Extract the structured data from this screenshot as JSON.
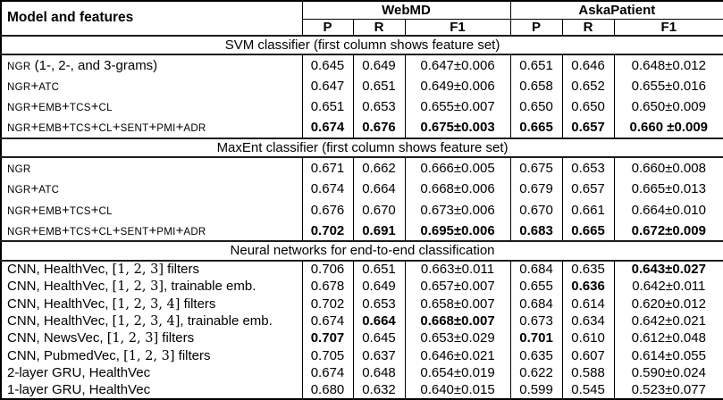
{
  "table": {
    "model_header": "Model and features",
    "col_groups": [
      "WebMD",
      "AskaPatient"
    ],
    "sub_headers": [
      "P",
      "R",
      "F1"
    ],
    "sections": [
      {
        "title": "SVM classifier (first column shows feature set)",
        "small_caps_features": true,
        "rows": [
          {
            "model": "NGR (1-, 2-, and 3-grams)",
            "values": [
              "0.645",
              "0.649",
              "0.647±0.006",
              "0.651",
              "0.646",
              "0.648±0.012"
            ],
            "bold": []
          },
          {
            "model": "NGR+ATC",
            "values": [
              "0.647",
              "0.651",
              "0.649±0.006",
              "0.658",
              "0.652",
              "0.655±0.016"
            ],
            "bold": []
          },
          {
            "model": "NGR+EMB+TCS+CL",
            "values": [
              "0.651",
              "0.653",
              "0.655±0.007",
              "0.650",
              "0.650",
              "0.650±0.009"
            ],
            "bold": []
          },
          {
            "model": "NGR+EMB+TCS+CL+SENT+PMI+ADR",
            "values": [
              "0.674",
              "0.676",
              "0.675±0.003",
              "0.665",
              "0.657",
              "0.660 ±0.009"
            ],
            "bold": [
              0,
              1,
              2,
              3,
              4,
              5
            ]
          }
        ]
      },
      {
        "title": "MaxEnt classifier (first column shows feature set)",
        "small_caps_features": true,
        "rows": [
          {
            "model": "NGR",
            "values": [
              "0.671",
              "0.662",
              "0.666±0.005",
              "0.675",
              "0.653",
              "0.660±0.008"
            ],
            "bold": []
          },
          {
            "model": "NGR+ATC",
            "values": [
              "0.674",
              "0.664",
              "0.668±0.006",
              "0.679",
              "0.657",
              "0.665±0.013"
            ],
            "bold": []
          },
          {
            "model": "NGR+EMB+TCS+CL",
            "values": [
              "0.676",
              "0.670",
              "0.673±0.006",
              "0.670",
              "0.661",
              "0.664±0.010"
            ],
            "bold": []
          },
          {
            "model": "NGR+EMB+TCS+CL+SENT+PMI+ADR",
            "values": [
              "0.702",
              "0.691",
              "0.695±0.006",
              "0.683",
              "0.665",
              "0.672±0.009"
            ],
            "bold": [
              0,
              1,
              2,
              3,
              4,
              5
            ]
          }
        ]
      },
      {
        "title": "Neural networks for end-to-end classification",
        "small_caps_features": false,
        "rows": [
          {
            "model": "CNN, HealthVec, [1, 2, 3] filters",
            "values": [
              "0.706",
              "0.651",
              "0.663±0.011",
              "0.684",
              "0.635",
              "0.643±0.027"
            ],
            "bold": [
              5
            ]
          },
          {
            "model": "CNN, HealthVec, [1, 2, 3], trainable emb.",
            "values": [
              "0.678",
              "0.649",
              "0.657±0.007",
              "0.655",
              "0.636",
              "0.642±0.011"
            ],
            "bold": [
              4
            ]
          },
          {
            "model": "CNN, HealthVec, [1, 2, 3, 4] filters",
            "values": [
              "0.702",
              "0.653",
              "0.658±0.007",
              "0.684",
              "0.614",
              "0.620±0.012"
            ],
            "bold": []
          },
          {
            "model": "CNN, HealthVec, [1, 2, 3, 4], trainable emb.",
            "values": [
              "0.674",
              "0.664",
              "0.668±0.007",
              "0.673",
              "0.634",
              "0.642±0.021"
            ],
            "bold": [
              1,
              2
            ]
          },
          {
            "model": "CNN, NewsVec, [1, 2, 3] filters",
            "values": [
              "0.707",
              "0.645",
              "0.653±0.029",
              "0.701",
              "0.610",
              "0.612±0.048"
            ],
            "bold": [
              0,
              3
            ]
          },
          {
            "model": "CNN, PubmedVec, [1, 2, 3] filters",
            "values": [
              "0.705",
              "0.637",
              "0.646±0.021",
              "0.635",
              "0.607",
              "0.614±0.055"
            ],
            "bold": []
          },
          {
            "model": "2-layer GRU, HealthVec",
            "values": [
              "0.674",
              "0.648",
              "0.654±0.019",
              "0.622",
              "0.588",
              "0.590±0.024"
            ],
            "bold": []
          },
          {
            "model": "1-layer GRU, HealthVec",
            "values": [
              "0.680",
              "0.632",
              "0.640±0.015",
              "0.599",
              "0.545",
              "0.523±0.077"
            ],
            "bold": []
          }
        ]
      }
    ]
  }
}
